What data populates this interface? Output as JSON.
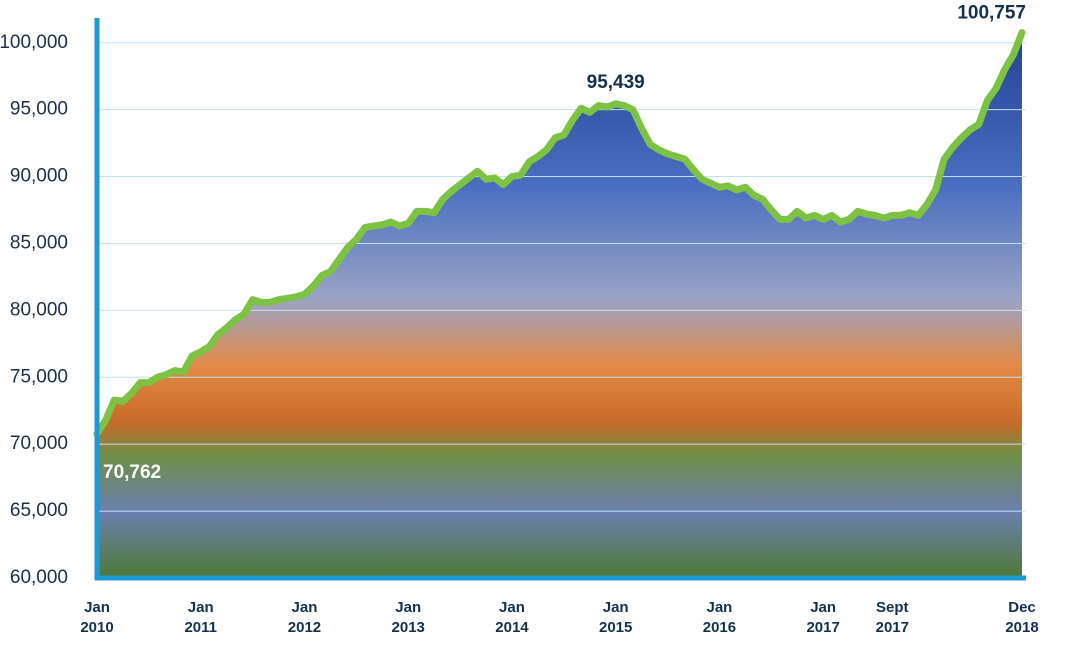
{
  "chart_data": {
    "type": "line",
    "categories": [
      "Jan 2010",
      null,
      null,
      null,
      null,
      null,
      null,
      null,
      null,
      null,
      null,
      null,
      "Jan 2011",
      null,
      null,
      null,
      null,
      null,
      null,
      null,
      null,
      null,
      null,
      null,
      "Jan 2012",
      null,
      null,
      null,
      null,
      null,
      null,
      null,
      null,
      null,
      null,
      null,
      "Jan 2013",
      null,
      null,
      null,
      null,
      null,
      null,
      null,
      null,
      null,
      null,
      null,
      "Jan 2014",
      null,
      null,
      null,
      null,
      null,
      null,
      null,
      null,
      null,
      null,
      null,
      "Jan 2015",
      null,
      null,
      null,
      null,
      null,
      null,
      null,
      null,
      null,
      null,
      null,
      "Jan 2016",
      null,
      null,
      null,
      null,
      null,
      null,
      null,
      null,
      null,
      null,
      null,
      "Jan 2017",
      null,
      null,
      null,
      null,
      null,
      null,
      null,
      "Sept 2017",
      null,
      null,
      null,
      null,
      null,
      null,
      null,
      null,
      null,
      null,
      null,
      null,
      null,
      null,
      "Dec 2018"
    ],
    "series": [
      {
        "color": "#7dc243",
        "values": [
          70762,
          71800,
          73300,
          73200,
          73800,
          74600,
          74600,
          75000,
          75200,
          75500,
          75400,
          76600,
          76900,
          77300,
          78200,
          78700,
          79300,
          79700,
          80800,
          80600,
          80600,
          80800,
          80900,
          81000,
          81200,
          81800,
          82600,
          82900,
          83800,
          84700,
          85300,
          86200,
          86300,
          86400,
          86600,
          86300,
          86500,
          87400,
          87400,
          87300,
          88300,
          88900,
          89400,
          89900,
          90400,
          89800,
          89900,
          89400,
          90000,
          90100,
          91100,
          91500,
          92000,
          92900,
          93100,
          94200,
          95100,
          94800,
          95300,
          95200,
          95439,
          95300,
          95000,
          93600,
          92400,
          92000,
          91700,
          91500,
          91300,
          90500,
          89800,
          89500,
          89200,
          89300,
          89000,
          89200,
          88600,
          88300,
          87500,
          86800,
          86800,
          87400,
          86900,
          87100,
          86800,
          87100,
          86600,
          86800,
          87400,
          87200,
          87100,
          86900,
          87100,
          87100,
          87300,
          87100,
          87900,
          89000,
          91300,
          92200,
          92900,
          93500,
          93900,
          95700,
          96600,
          98000,
          99100,
          100757
        ],
        "value_labels": [
          "70,762",
          null,
          null,
          null,
          null,
          null,
          null,
          null,
          null,
          null,
          null,
          null,
          null,
          null,
          null,
          null,
          null,
          null,
          null,
          null,
          null,
          null,
          null,
          null,
          null,
          null,
          null,
          null,
          null,
          null,
          null,
          null,
          null,
          null,
          null,
          null,
          null,
          null,
          null,
          null,
          null,
          null,
          null,
          null,
          null,
          null,
          null,
          null,
          null,
          null,
          null,
          null,
          null,
          null,
          null,
          null,
          null,
          null,
          null,
          null,
          "95,439",
          null,
          null,
          null,
          null,
          null,
          null,
          null,
          null,
          null,
          null,
          null,
          null,
          null,
          null,
          null,
          null,
          null,
          null,
          null,
          null,
          null,
          null,
          null,
          null,
          null,
          null,
          null,
          null,
          null,
          null,
          null,
          null,
          null,
          null,
          null,
          null,
          null,
          null,
          null,
          null,
          null,
          null,
          null,
          null,
          null,
          null,
          "100,757"
        ]
      }
    ],
    "ylim": [
      60000,
      101700
    ],
    "yticks": [
      {
        "value": 60000,
        "label": "60,000"
      },
      {
        "value": 65000,
        "label": "65,000"
      },
      {
        "value": 70000,
        "label": "70,000"
      },
      {
        "value": 75000,
        "label": "75,000"
      },
      {
        "value": 80000,
        "label": "80,000"
      },
      {
        "value": 85000,
        "label": "85,000"
      },
      {
        "value": 90000,
        "label": "90,000"
      },
      {
        "value": 95000,
        "label": "95,000"
      },
      {
        "value": 100000,
        "label": "100,000"
      }
    ],
    "grid": true
  }
}
